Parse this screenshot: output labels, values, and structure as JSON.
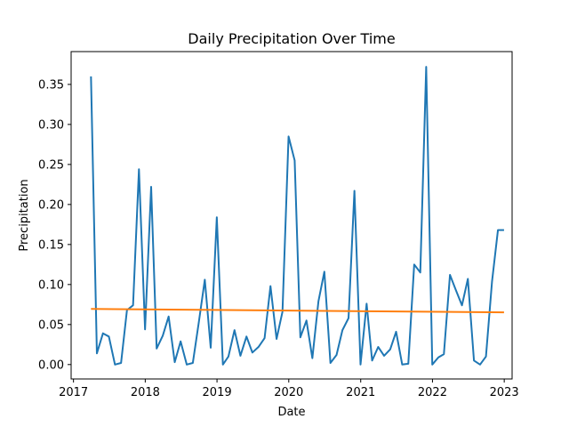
{
  "chart_data": {
    "type": "line",
    "title": "Daily Precipitation Over Time",
    "xlabel": "Date",
    "ylabel": "Precipitation",
    "xlim": [
      "2016-12-20",
      "2023-02-10"
    ],
    "ylim": [
      -0.018,
      0.391
    ],
    "x_ticks": [
      {
        "value": "2017-01-01",
        "label": "2017"
      },
      {
        "value": "2018-01-01",
        "label": "2018"
      },
      {
        "value": "2019-01-01",
        "label": "2019"
      },
      {
        "value": "2020-01-01",
        "label": "2020"
      },
      {
        "value": "2021-01-01",
        "label": "2021"
      },
      {
        "value": "2022-01-01",
        "label": "2022"
      },
      {
        "value": "2023-01-01",
        "label": "2023"
      }
    ],
    "y_ticks": [
      {
        "value": 0.0,
        "label": "0.00"
      },
      {
        "value": 0.05,
        "label": "0.05"
      },
      {
        "value": 0.1,
        "label": "0.10"
      },
      {
        "value": 0.15,
        "label": "0.15"
      },
      {
        "value": 0.2,
        "label": "0.20"
      },
      {
        "value": 0.25,
        "label": "0.25"
      },
      {
        "value": 0.3,
        "label": "0.30"
      },
      {
        "value": 0.35,
        "label": "0.35"
      }
    ],
    "grid": false,
    "legend": "none",
    "series": [
      {
        "color": "#1f77b4",
        "x": [
          "2017-03-31",
          "2017-04-30",
          "2017-05-31",
          "2017-06-30",
          "2017-07-31",
          "2017-08-31",
          "2017-09-30",
          "2017-10-31",
          "2017-11-30",
          "2017-12-31",
          "2018-01-31",
          "2018-02-28",
          "2018-03-31",
          "2018-04-30",
          "2018-05-31",
          "2018-06-30",
          "2018-07-31",
          "2018-08-31",
          "2018-09-30",
          "2018-10-31",
          "2018-11-30",
          "2018-12-31",
          "2019-01-31",
          "2019-02-28",
          "2019-03-31",
          "2019-04-30",
          "2019-05-31",
          "2019-06-30",
          "2019-07-31",
          "2019-08-31",
          "2019-09-30",
          "2019-10-31",
          "2019-11-30",
          "2019-12-31",
          "2020-01-31",
          "2020-02-29",
          "2020-03-31",
          "2020-04-30",
          "2020-05-31",
          "2020-06-30",
          "2020-07-31",
          "2020-08-31",
          "2020-09-30",
          "2020-10-31",
          "2020-11-30",
          "2020-12-31",
          "2021-01-31",
          "2021-02-28",
          "2021-03-31",
          "2021-04-30",
          "2021-05-31",
          "2021-06-30",
          "2021-07-31",
          "2021-08-31",
          "2021-09-30",
          "2021-10-31",
          "2021-11-30",
          "2021-12-31",
          "2022-01-31",
          "2022-02-28",
          "2022-03-31",
          "2022-04-30",
          "2022-05-31",
          "2022-06-30",
          "2022-07-31",
          "2022-08-31",
          "2022-09-30",
          "2022-10-31",
          "2022-11-30",
          "2022-12-31"
        ],
        "values": [
          0.36,
          0.014,
          0.039,
          0.035,
          0.0,
          0.002,
          0.068,
          0.074,
          0.244,
          0.044,
          0.222,
          0.02,
          0.036,
          0.06,
          0.003,
          0.029,
          0.0,
          0.002,
          0.052,
          0.106,
          0.021,
          0.184,
          0.0,
          0.01,
          0.043,
          0.011,
          0.035,
          0.015,
          0.022,
          0.033,
          0.098,
          0.032,
          0.066,
          0.285,
          0.255,
          0.034,
          0.055,
          0.008,
          0.079,
          0.116,
          0.002,
          0.012,
          0.043,
          0.058,
          0.217,
          0.0,
          0.076,
          0.005,
          0.022,
          0.011,
          0.019,
          0.041,
          0.0,
          0.001,
          0.125,
          0.115,
          0.372,
          0.0,
          0.009,
          0.013,
          0.112,
          0.093,
          0.074,
          0.107,
          0.005,
          0.0,
          0.01,
          0.104,
          0.168,
          0.168
        ]
      },
      {
        "color": "#ff7f0e",
        "x": [
          "2017-03-31",
          "2022-12-31"
        ],
        "values": [
          0.0695,
          0.0652
        ]
      }
    ]
  }
}
